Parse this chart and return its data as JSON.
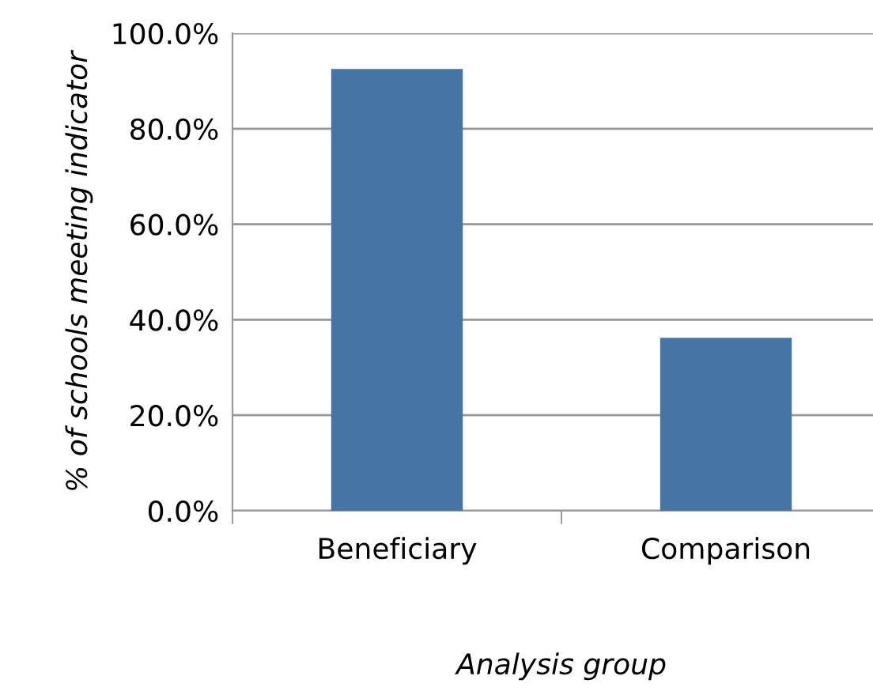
{
  "chart_data": {
    "type": "bar",
    "xlabel": "Analysis group",
    "ylabel": "% of schools meeting indicator",
    "categories": [
      "Beneficiary",
      "Comparison"
    ],
    "series": [
      {
        "color": "#4674a4",
        "values": [
          92.5,
          36.2
        ]
      }
    ],
    "ylim": [
      0,
      100
    ],
    "yticks": [
      {
        "value": 0,
        "label": "0.0%"
      },
      {
        "value": 20,
        "label": "20.0%"
      },
      {
        "value": 40,
        "label": "40.0%"
      },
      {
        "value": 60,
        "label": "60.0%"
      },
      {
        "value": 80,
        "label": "80.0%"
      },
      {
        "value": 100,
        "label": "100.0%"
      }
    ],
    "grid": "y",
    "legend": false
  }
}
